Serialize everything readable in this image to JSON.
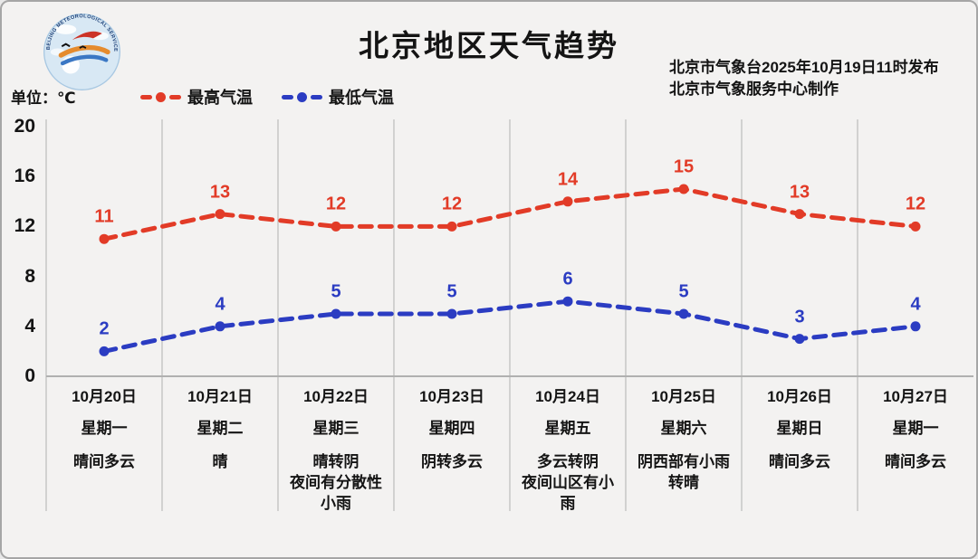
{
  "header": {
    "title": "北京地区天气趋势",
    "publisher_line1": "北京市气象台2025年10月19日11时发布",
    "publisher_line2": "北京市气象服务中心制作",
    "unit_label": "单位：℃",
    "logo_name": "beijing-meteorological-service-badge",
    "logo_arc_text": "BEIJING METEOROLOGICAL SERVICE"
  },
  "legend": [
    {
      "label": "最高气温",
      "color": "#e23b27"
    },
    {
      "label": "最低气温",
      "color": "#2b3cc2"
    }
  ],
  "chart_data": {
    "type": "line",
    "title": "北京地区天气趋势",
    "ylabel": "单位：℃",
    "ylim": [
      0,
      20
    ],
    "yticks": [
      0,
      4,
      8,
      12,
      16,
      20
    ],
    "grid": "vertical-only",
    "line_style": "dashed-with-dots",
    "legend_position": "top-left",
    "categories": [
      "10月20日",
      "10月21日",
      "10月22日",
      "10月23日",
      "10月24日",
      "10月25日",
      "10月26日",
      "10月27日"
    ],
    "series": [
      {
        "name": "最高气温",
        "color": "#e23b27",
        "values": [
          11,
          13,
          12,
          12,
          14,
          15,
          13,
          12
        ]
      },
      {
        "name": "最低气温",
        "color": "#2b3cc2",
        "values": [
          2,
          4,
          5,
          5,
          6,
          5,
          3,
          4
        ]
      }
    ],
    "days": [
      {
        "date": "10月20日",
        "weekday": "星期一",
        "weather": "晴间多云"
      },
      {
        "date": "10月21日",
        "weekday": "星期二",
        "weather": "晴"
      },
      {
        "date": "10月22日",
        "weekday": "星期三",
        "weather": "晴转阴\n夜间有分散性\n小雨"
      },
      {
        "date": "10月23日",
        "weekday": "星期四",
        "weather": "阴转多云"
      },
      {
        "date": "10月24日",
        "weekday": "星期五",
        "weather": "多云转阴\n夜间山区有小\n雨"
      },
      {
        "date": "10月25日",
        "weekday": "星期六",
        "weather": "阴西部有小雨\n转晴"
      },
      {
        "date": "10月26日",
        "weekday": "星期日",
        "weather": "晴间多云"
      },
      {
        "date": "10月27日",
        "weekday": "星期一",
        "weather": "晴间多云"
      }
    ],
    "colors": {
      "background": "#f3f2f1",
      "gridline": "#c9c9c9",
      "baseline": "#b0b0b0",
      "text": "#141414"
    }
  }
}
